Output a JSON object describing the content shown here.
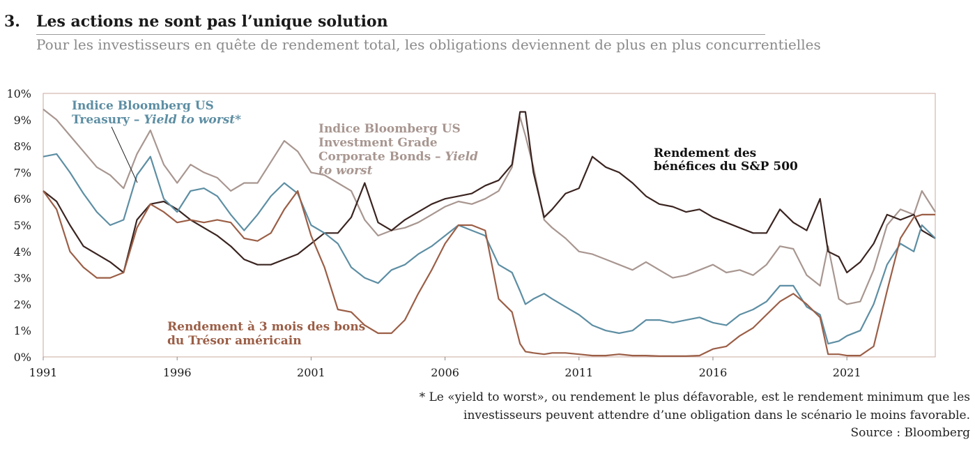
{
  "header": {
    "number": "3.",
    "title": "Les actions ne sont pas l’unique solution",
    "subtitle": "Pour les investisseurs en quête de rendement total, les obligations deviennent de plus en plus concurrentielles"
  },
  "chart_data": {
    "type": "line",
    "ylim": [
      0,
      10
    ],
    "y_ticks": [
      "0%",
      "1%",
      "2%",
      "3%",
      "4%",
      "5%",
      "6%",
      "7%",
      "8%",
      "9%",
      "10%"
    ],
    "xlim": [
      1991,
      2024.3
    ],
    "x_ticks": [
      "1991",
      "1996",
      "2001",
      "2006",
      "2011",
      "2016",
      "2021"
    ],
    "x_tick_values": [
      1991,
      1996,
      2001,
      2006,
      2011,
      2016,
      2021
    ],
    "grid": false,
    "series": [
      {
        "key": "ig",
        "name_lines": [
          "Indice Bloomberg US",
          "Investment Grade",
          "Corporate Bonds – ",
          "to worst"
        ],
        "name_italic": [
          "",
          "",
          "Yield",
          "to worst"
        ],
        "color": "#a89690",
        "x": [
          1991,
          1991.5,
          1992,
          1992.5,
          1993,
          1993.5,
          1994,
          1994.5,
          1995,
          1995.5,
          1996,
          1996.5,
          1997,
          1997.5,
          1998,
          1998.5,
          1999,
          1999.5,
          2000,
          2000.5,
          2001,
          2001.5,
          2002,
          2002.5,
          2003,
          2003.5,
          2004,
          2004.5,
          2005,
          2005.5,
          2006,
          2006.5,
          2007,
          2007.5,
          2008,
          2008.5,
          2008.8,
          2009,
          2009.3,
          2009.7,
          2010,
          2010.5,
          2011,
          2011.5,
          2012,
          2012.5,
          2013,
          2013.5,
          2014,
          2014.5,
          2015,
          2015.5,
          2016,
          2016.5,
          2017,
          2017.5,
          2018,
          2018.5,
          2019,
          2019.5,
          2020,
          2020.3,
          2020.7,
          2021,
          2021.5,
          2022,
          2022.5,
          2023,
          2023.5,
          2023.8,
          2024.3
        ],
        "values": [
          9.4,
          9.0,
          8.4,
          7.8,
          7.2,
          6.9,
          6.4,
          7.7,
          8.6,
          7.3,
          6.6,
          7.3,
          7.0,
          6.8,
          6.3,
          6.6,
          6.6,
          7.4,
          8.2,
          7.8,
          7.0,
          6.9,
          6.6,
          6.3,
          5.2,
          4.6,
          4.8,
          4.9,
          5.1,
          5.4,
          5.7,
          5.9,
          5.8,
          6.0,
          6.3,
          7.2,
          9.1,
          8.4,
          7.2,
          5.2,
          4.9,
          4.5,
          4.0,
          3.9,
          3.7,
          3.5,
          3.3,
          3.6,
          3.3,
          3.0,
          3.1,
          3.3,
          3.5,
          3.2,
          3.3,
          3.1,
          3.5,
          4.2,
          4.1,
          3.1,
          2.7,
          4.2,
          2.2,
          2.0,
          2.1,
          3.3,
          5.0,
          5.6,
          5.4,
          6.3,
          5.5
        ]
      },
      {
        "key": "sp",
        "name_lines": [
          "Rendement des",
          "bénéfices du S&P 500"
        ],
        "color": "#3a2420",
        "x": [
          1991,
          1991.5,
          1992,
          1992.5,
          1993,
          1993.5,
          1994,
          1994.5,
          1995,
          1995.5,
          1996,
          1996.5,
          1997,
          1997.5,
          1998,
          1998.5,
          1999,
          1999.5,
          2000,
          2000.5,
          2001,
          2001.5,
          2002,
          2002.5,
          2003,
          2003.5,
          2004,
          2004.5,
          2005,
          2005.5,
          2006,
          2006.5,
          2007,
          2007.5,
          2008,
          2008.5,
          2008.8,
          2009,
          2009.3,
          2009.7,
          2010,
          2010.5,
          2011,
          2011.5,
          2012,
          2012.5,
          2013,
          2013.5,
          2014,
          2014.5,
          2015,
          2015.5,
          2016,
          2016.5,
          2017,
          2017.5,
          2018,
          2018.5,
          2019,
          2019.5,
          2020,
          2020.3,
          2020.7,
          2021,
          2021.5,
          2022,
          2022.5,
          2023,
          2023.5,
          2023.8,
          2024.3
        ],
        "values": [
          6.3,
          5.9,
          5.0,
          4.2,
          3.9,
          3.6,
          3.2,
          5.2,
          5.8,
          5.9,
          5.6,
          5.2,
          4.9,
          4.6,
          4.2,
          3.7,
          3.5,
          3.5,
          3.7,
          3.9,
          4.3,
          4.7,
          4.7,
          5.3,
          6.6,
          5.1,
          4.8,
          5.2,
          5.5,
          5.8,
          6.0,
          6.1,
          6.2,
          6.5,
          6.7,
          7.3,
          9.3,
          9.3,
          7.0,
          5.3,
          5.6,
          6.2,
          6.4,
          7.6,
          7.2,
          7.0,
          6.6,
          6.1,
          5.8,
          5.7,
          5.5,
          5.6,
          5.3,
          5.1,
          4.9,
          4.7,
          4.7,
          5.6,
          5.1,
          4.8,
          6.0,
          4.0,
          3.8,
          3.2,
          3.6,
          4.3,
          5.4,
          5.2,
          5.4,
          4.8,
          4.5
        ]
      },
      {
        "key": "ust",
        "name_lines": [
          "Indice Bloomberg US",
          "Treasury – "
        ],
        "name_suffix_italic": "Yield to worst",
        "name_suffix": "*",
        "color": "#5d8ea3",
        "x": [
          1991,
          1991.5,
          1992,
          1992.5,
          1993,
          1993.5,
          1994,
          1994.5,
          1995,
          1995.5,
          1996,
          1996.5,
          1997,
          1997.5,
          1998,
          1998.5,
          1999,
          1999.5,
          2000,
          2000.5,
          2001,
          2001.5,
          2002,
          2002.5,
          2003,
          2003.5,
          2004,
          2004.5,
          2005,
          2005.5,
          2006,
          2006.5,
          2007,
          2007.5,
          2008,
          2008.5,
          2008.8,
          2009,
          2009.3,
          2009.7,
          2010,
          2010.5,
          2011,
          2011.5,
          2012,
          2012.5,
          2013,
          2013.5,
          2014,
          2014.5,
          2015,
          2015.5,
          2016,
          2016.5,
          2017,
          2017.5,
          2018,
          2018.5,
          2019,
          2019.5,
          2020,
          2020.3,
          2020.7,
          2021,
          2021.5,
          2022,
          2022.5,
          2023,
          2023.5,
          2023.8,
          2024.3
        ],
        "values": [
          7.6,
          7.7,
          7.0,
          6.2,
          5.5,
          5.0,
          5.2,
          6.9,
          7.6,
          6.0,
          5.5,
          6.3,
          6.4,
          6.1,
          5.4,
          4.8,
          5.4,
          6.1,
          6.6,
          6.2,
          5.0,
          4.7,
          4.3,
          3.4,
          3.0,
          2.8,
          3.3,
          3.5,
          3.9,
          4.2,
          4.6,
          5.0,
          4.8,
          4.6,
          3.5,
          3.2,
          2.5,
          2.0,
          2.2,
          2.4,
          2.2,
          1.9,
          1.6,
          1.2,
          1.0,
          0.9,
          1.0,
          1.4,
          1.4,
          1.3,
          1.4,
          1.5,
          1.3,
          1.2,
          1.6,
          1.8,
          2.1,
          2.7,
          2.7,
          1.9,
          1.6,
          0.5,
          0.6,
          0.8,
          1.0,
          2.0,
          3.5,
          4.3,
          4.0,
          5.0,
          4.5
        ]
      },
      {
        "key": "tb3",
        "name_lines": [
          "Rendement à 3 mois des bons",
          "du Trésor américain"
        ],
        "color": "#9b5e46",
        "x": [
          1991,
          1991.5,
          1992,
          1992.5,
          1993,
          1993.5,
          1994,
          1994.5,
          1995,
          1995.5,
          1996,
          1996.5,
          1997,
          1997.5,
          1998,
          1998.5,
          1999,
          1999.5,
          2000,
          2000.5,
          2001,
          2001.5,
          2002,
          2002.5,
          2003,
          2003.5,
          2004,
          2004.5,
          2005,
          2005.5,
          2006,
          2006.5,
          2007,
          2007.5,
          2008,
          2008.5,
          2008.8,
          2009,
          2009.3,
          2009.7,
          2010,
          2010.5,
          2011,
          2011.5,
          2012,
          2012.5,
          2013,
          2013.5,
          2014,
          2014.5,
          2015,
          2015.5,
          2016,
          2016.5,
          2017,
          2017.5,
          2018,
          2018.5,
          2019,
          2019.5,
          2020,
          2020.3,
          2020.7,
          2021,
          2021.5,
          2022,
          2022.5,
          2023,
          2023.5,
          2023.8,
          2024.3
        ],
        "values": [
          6.3,
          5.6,
          4.0,
          3.4,
          3.0,
          3.0,
          3.2,
          4.9,
          5.8,
          5.5,
          5.1,
          5.2,
          5.1,
          5.2,
          5.1,
          4.5,
          4.4,
          4.7,
          5.6,
          6.3,
          4.6,
          3.4,
          1.8,
          1.7,
          1.2,
          0.9,
          0.9,
          1.4,
          2.4,
          3.3,
          4.3,
          5.0,
          5.0,
          4.8,
          2.2,
          1.7,
          0.5,
          0.2,
          0.15,
          0.1,
          0.15,
          0.15,
          0.1,
          0.05,
          0.05,
          0.1,
          0.05,
          0.05,
          0.03,
          0.03,
          0.03,
          0.05,
          0.3,
          0.4,
          0.8,
          1.1,
          1.6,
          2.1,
          2.4,
          2.0,
          1.5,
          0.1,
          0.1,
          0.05,
          0.05,
          0.4,
          2.5,
          4.5,
          5.3,
          5.4,
          5.4
        ]
      }
    ]
  },
  "footnote": {
    "line1": "* Le «yield to worst», ou rendement le plus défavorable, est le rendement minimum que les",
    "line2": "investisseurs peuvent attendre d’une obligation dans le scénario le moins favorable.",
    "source": "Source : Bloomberg"
  }
}
